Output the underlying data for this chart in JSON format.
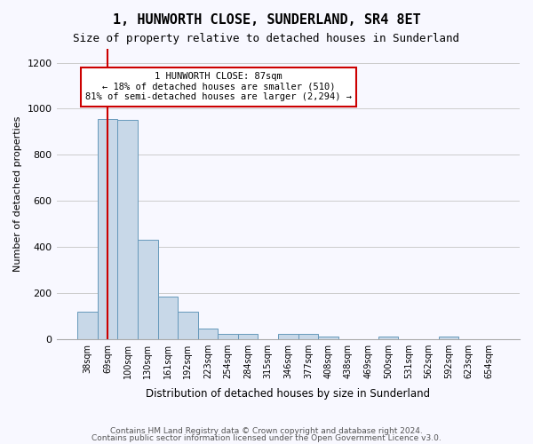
{
  "title": "1, HUNWORTH CLOSE, SUNDERLAND, SR4 8ET",
  "subtitle": "Size of property relative to detached houses in Sunderland",
  "xlabel": "Distribution of detached houses by size in Sunderland",
  "ylabel": "Number of detached properties",
  "bar_color": "#c8d8e8",
  "bar_edge_color": "#6699bb",
  "categories": [
    "38sqm",
    "69sqm",
    "100sqm",
    "130sqm",
    "161sqm",
    "192sqm",
    "223sqm",
    "254sqm",
    "284sqm",
    "315sqm",
    "346sqm",
    "377sqm",
    "408sqm",
    "438sqm",
    "469sqm",
    "500sqm",
    "531sqm",
    "562sqm",
    "592sqm",
    "623sqm",
    "654sqm"
  ],
  "values": [
    120,
    955,
    950,
    430,
    185,
    120,
    45,
    20,
    20,
    0,
    20,
    20,
    10,
    0,
    0,
    10,
    0,
    0,
    10,
    0,
    0
  ],
  "ylim": [
    0,
    1260
  ],
  "yticks": [
    0,
    200,
    400,
    600,
    800,
    1000,
    1200
  ],
  "annotation_text": "1 HUNWORTH CLOSE: 87sqm\n← 18% of detached houses are smaller (510)\n81% of semi-detached houses are larger (2,294) →",
  "vline_x": 1,
  "vline_color": "#cc0000",
  "box_color": "#cc0000",
  "footer_line1": "Contains HM Land Registry data © Crown copyright and database right 2024.",
  "footer_line2": "Contains public sector information licensed under the Open Government Licence v3.0.",
  "background_color": "#f8f8ff",
  "grid_color": "#cccccc"
}
